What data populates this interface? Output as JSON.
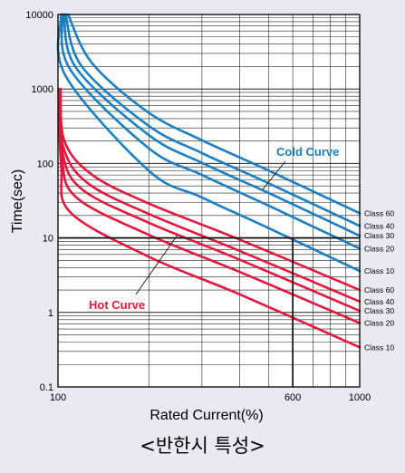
{
  "caption": "<반한시 특성>",
  "chart_data": {
    "type": "line",
    "title": "",
    "xlabel": "Rated Current(%)",
    "ylabel": "Time(sec)",
    "xscale": "log",
    "yscale": "log",
    "xlim": [
      100,
      1000
    ],
    "ylim": [
      0.1,
      10000
    ],
    "x_ticks": [
      100,
      600,
      1000
    ],
    "y_ticks": [
      0.1,
      1,
      10,
      100,
      1000,
      10000
    ],
    "grid": true,
    "highlight": {
      "x": 600,
      "y": 10
    },
    "annotations": [
      {
        "text": "Cold Curve",
        "color": "#1a7fc4"
      },
      {
        "text": "Hot Curve",
        "color": "#e4173c"
      }
    ],
    "series": [
      {
        "name": "Class 60",
        "group": "cold",
        "color": "#1a7fc4",
        "x": [
          108,
          130,
          200,
          300,
          500,
          1000
        ],
        "y": [
          10000,
          2200,
          480,
          205,
          80,
          21.5
        ]
      },
      {
        "name": "Class 40",
        "group": "cold",
        "color": "#1a7fc4",
        "x": [
          106,
          120,
          200,
          300,
          500,
          1000
        ],
        "y": [
          10000,
          2000,
          320,
          138,
          54,
          14.5
        ]
      },
      {
        "name": "Class 30",
        "group": "cold",
        "color": "#1a7fc4",
        "x": [
          104.5,
          115,
          200,
          300,
          500,
          1000
        ],
        "y": [
          10000,
          1900,
          240,
          102,
          40,
          10.7
        ]
      },
      {
        "name": "Class 20",
        "group": "cold",
        "color": "#1a7fc4",
        "x": [
          103.5,
          110,
          200,
          300,
          500,
          1000
        ],
        "y": [
          10000,
          1800,
          160,
          70,
          27,
          7.2
        ]
      },
      {
        "name": "Class 10",
        "group": "cold",
        "color": "#1a7fc4",
        "x": [
          102.5,
          106,
          200,
          300,
          500,
          1000
        ],
        "y": [
          10000,
          1500,
          80,
          35,
          13.5,
          3.6
        ]
      },
      {
        "name": "Class 60",
        "group": "hot",
        "color": "#e4173c",
        "x": [
          102,
          105,
          130,
          200,
          400,
          1000
        ],
        "y": [
          1000,
          200,
          70,
          29,
          9.5,
          2.0
        ]
      },
      {
        "name": "Class 40",
        "group": "hot",
        "color": "#e4173c",
        "x": [
          101.6,
          104,
          125,
          200,
          400,
          1000
        ],
        "y": [
          1000,
          170,
          55,
          21,
          6.7,
          1.4
        ]
      },
      {
        "name": "Class 30",
        "group": "hot",
        "color": "#e4173c",
        "x": [
          101.2,
          103.5,
          120,
          200,
          400,
          1000
        ],
        "y": [
          1000,
          140,
          45,
          16,
          5.1,
          1.05
        ]
      },
      {
        "name": "Class 20",
        "group": "hot",
        "color": "#e4173c",
        "x": [
          100.8,
          103,
          115,
          200,
          400,
          1000
        ],
        "y": [
          1000,
          120,
          35,
          11,
          3.5,
          0.72
        ]
      },
      {
        "name": "Class 10",
        "group": "hot",
        "color": "#e4173c",
        "x": [
          100.4,
          102.5,
          110,
          200,
          400,
          1000
        ],
        "y": [
          1000,
          90,
          22,
          5.6,
          1.75,
          0.34
        ]
      }
    ]
  }
}
